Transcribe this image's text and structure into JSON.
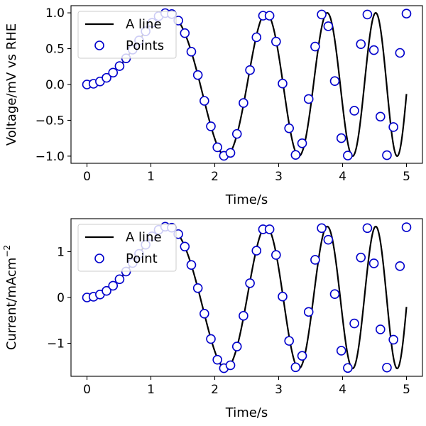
{
  "chart_data": [
    {
      "type": "line",
      "xlabel": "Time/s",
      "ylabel": "Voltage/mV vs RHE",
      "ylabel_superscript": "",
      "xlim": [
        -0.25,
        5.25
      ],
      "ylim": [
        -1.1,
        1.1
      ],
      "xticks": [
        0,
        1,
        2,
        3,
        4,
        5
      ],
      "xtick_labels": [
        "0",
        "1",
        "2",
        "3",
        "4",
        "5"
      ],
      "yticks": [
        -1.0,
        -0.5,
        0.0,
        0.5,
        1.0
      ],
      "ytick_labels": [
        "−1.0",
        "−0.5",
        "0.0",
        "0.5",
        "1.0"
      ],
      "legend": {
        "placement": "top-left",
        "line_label": "A line",
        "points_label": "Points"
      },
      "line": {
        "color": "#000000",
        "function": "sin(t^2)",
        "x_range": [
          0,
          5
        ]
      },
      "points": {
        "color": "#0000cc",
        "x": [
          0.0,
          0.102,
          0.204,
          0.306,
          0.408,
          0.51,
          0.612,
          0.714,
          0.816,
          0.918,
          1.02,
          1.122,
          1.224,
          1.327,
          1.429,
          1.531,
          1.633,
          1.735,
          1.837,
          1.939,
          2.041,
          2.143,
          2.245,
          2.347,
          2.449,
          2.551,
          2.653,
          2.755,
          2.857,
          2.959,
          3.061,
          3.163,
          3.265,
          3.367,
          3.469,
          3.571,
          3.673,
          3.776,
          3.878,
          3.98,
          4.082,
          4.184,
          4.286,
          4.388,
          4.49,
          4.592,
          4.694,
          4.796,
          4.898,
          5.0
        ],
        "y": [
          0.0,
          0.01,
          0.042,
          0.093,
          0.165,
          0.257,
          0.365,
          0.486,
          0.615,
          0.743,
          0.862,
          0.953,
          0.996,
          0.983,
          0.892,
          0.717,
          0.458,
          0.132,
          -0.228,
          -0.584,
          -0.876,
          -0.995,
          -0.954,
          -0.69,
          -0.258,
          0.201,
          0.659,
          0.96,
          0.96,
          0.599,
          0.013,
          -0.611,
          -0.983,
          -0.821,
          -0.203,
          0.53,
          0.977,
          0.813,
          0.048,
          -0.749,
          -0.992,
          -0.366,
          0.563,
          0.977,
          0.48,
          -0.449,
          -0.987,
          -0.594,
          0.441,
          0.989
        ]
      }
    },
    {
      "type": "line",
      "xlabel": "Time/s",
      "ylabel": "Current/mAcm",
      "ylabel_superscript": "−2",
      "xlim": [
        -0.25,
        5.25
      ],
      "ylim": [
        -1.72,
        1.72
      ],
      "xticks": [
        0,
        1,
        2,
        3,
        4,
        5
      ],
      "xtick_labels": [
        "0",
        "1",
        "2",
        "3",
        "4",
        "5"
      ],
      "yticks": [
        -1,
        0,
        1
      ],
      "ytick_labels": [
        "−1",
        "0",
        "1"
      ],
      "legend": {
        "placement": "top-left",
        "line_label": "A line",
        "points_label": "Point"
      },
      "line": {
        "color": "#000000",
        "function": "sin(t^2)",
        "x_range": [
          0,
          5
        ],
        "scale": 1.55
      },
      "points": {
        "color": "#0000cc",
        "x": [
          0.0,
          0.102,
          0.204,
          0.306,
          0.408,
          0.51,
          0.612,
          0.714,
          0.816,
          0.918,
          1.02,
          1.122,
          1.224,
          1.327,
          1.429,
          1.531,
          1.633,
          1.735,
          1.837,
          1.939,
          2.041,
          2.143,
          2.245,
          2.347,
          2.449,
          2.551,
          2.653,
          2.755,
          2.857,
          2.959,
          3.061,
          3.163,
          3.265,
          3.367,
          3.469,
          3.571,
          3.673,
          3.776,
          3.878,
          3.98,
          4.082,
          4.184,
          4.286,
          4.388,
          4.49,
          4.592,
          4.694,
          4.796,
          4.898,
          5.0
        ],
        "y": [
          0.0,
          0.016,
          0.065,
          0.144,
          0.256,
          0.398,
          0.566,
          0.753,
          0.953,
          1.152,
          1.336,
          1.477,
          1.544,
          1.524,
          1.383,
          1.111,
          0.71,
          0.205,
          -0.353,
          -0.905,
          -1.358,
          -1.542,
          -1.479,
          -1.07,
          -0.4,
          0.312,
          1.021,
          1.488,
          1.488,
          0.928,
          0.02,
          -0.947,
          -1.524,
          -1.273,
          -0.315,
          0.822,
          1.514,
          1.26,
          0.074,
          -1.161,
          -1.538,
          -0.567,
          0.873,
          1.514,
          0.744,
          -0.696,
          -1.53,
          -0.921,
          0.684,
          1.533
        ]
      }
    }
  ]
}
